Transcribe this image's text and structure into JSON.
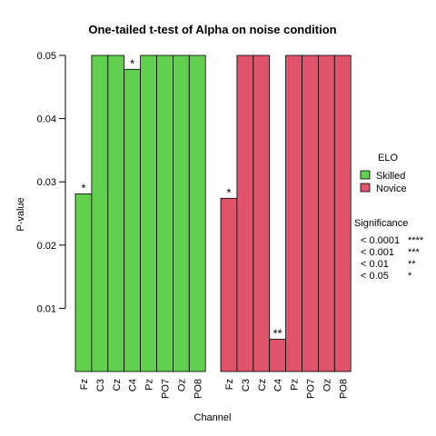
{
  "chart_data": {
    "type": "bar",
    "title": "One-tailed t-test of Alpha on noise condition",
    "xlabel": "Channel",
    "ylabel": "P-value",
    "ylim": [
      0,
      0.05
    ],
    "yticks": [
      "0.01",
      "0.02",
      "0.03",
      "0.04",
      "0.05"
    ],
    "ytick_values": [
      0.01,
      0.02,
      0.03,
      0.04,
      0.05
    ],
    "categories": [
      "Fz",
      "C3",
      "Cz",
      "C4",
      "Pz",
      "PO7",
      "Oz",
      "PO8"
    ],
    "series": [
      {
        "name": "Skilled",
        "color": "#61D04F",
        "values": [
          0.0281,
          0.05,
          0.05,
          0.0478,
          0.05,
          0.05,
          0.05,
          0.05
        ],
        "significance": [
          "*",
          "",
          "",
          "*",
          "",
          "",
          "",
          ""
        ]
      },
      {
        "name": "Novice",
        "color": "#DF536B",
        "values": [
          0.0274,
          0.05,
          0.05,
          0.0051,
          0.05,
          0.05,
          0.05,
          0.05
        ],
        "significance": [
          "*",
          "",
          "",
          "**",
          "",
          "",
          "",
          ""
        ]
      }
    ],
    "legend": {
      "position": "right",
      "title": "ELO",
      "entries": [
        "Skilled",
        "Novice"
      ]
    },
    "significance_legend": {
      "title": "Significance",
      "rows": [
        {
          "threshold": "< 0.0001",
          "stars": "****"
        },
        {
          "threshold": "< 0.001",
          "stars": "***"
        },
        {
          "threshold": "< 0.01",
          "stars": "**"
        },
        {
          "threshold": "< 0.05",
          "stars": "*"
        }
      ]
    },
    "grid": false
  }
}
